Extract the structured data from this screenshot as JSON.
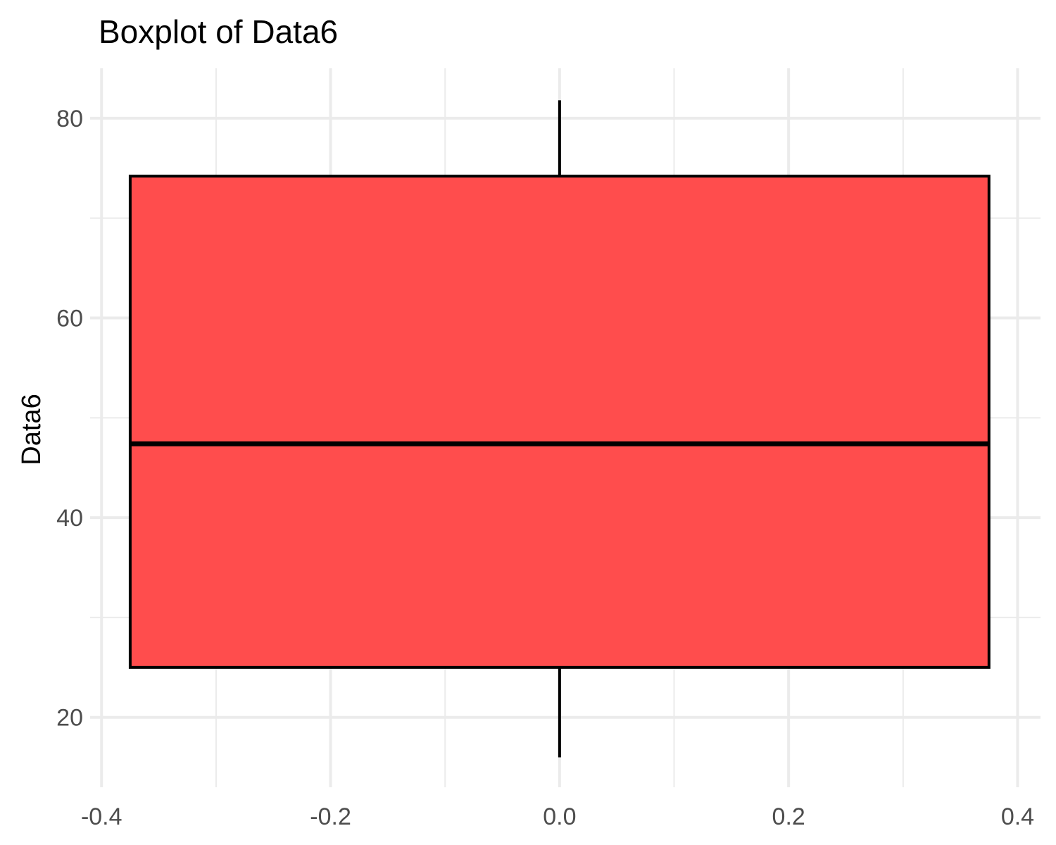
{
  "chart_data": {
    "type": "box",
    "title": "Boxplot of Data6",
    "xlabel": "",
    "ylabel": "Data6",
    "xlim": [
      -0.41,
      0.42
    ],
    "ylim": [
      13,
      85
    ],
    "x_ticks": [
      -0.4,
      -0.2,
      0.0,
      0.2,
      0.4
    ],
    "x_tick_labels": [
      "-0.4",
      "-0.2",
      "0.0",
      "0.2",
      "0.4"
    ],
    "y_ticks": [
      20,
      40,
      60,
      80
    ],
    "y_tick_labels": [
      "20",
      "40",
      "60",
      "80"
    ],
    "grid": true,
    "box": {
      "x_center": 0.0,
      "half_width": 0.375,
      "whisker_low": 16,
      "q1": 25,
      "median": 47.4,
      "q3": 74.2,
      "whisker_high": 81.8
    },
    "colors": {
      "fill": "#ff4d4d",
      "stroke": "#000000",
      "grid": "#ebebeb"
    }
  }
}
